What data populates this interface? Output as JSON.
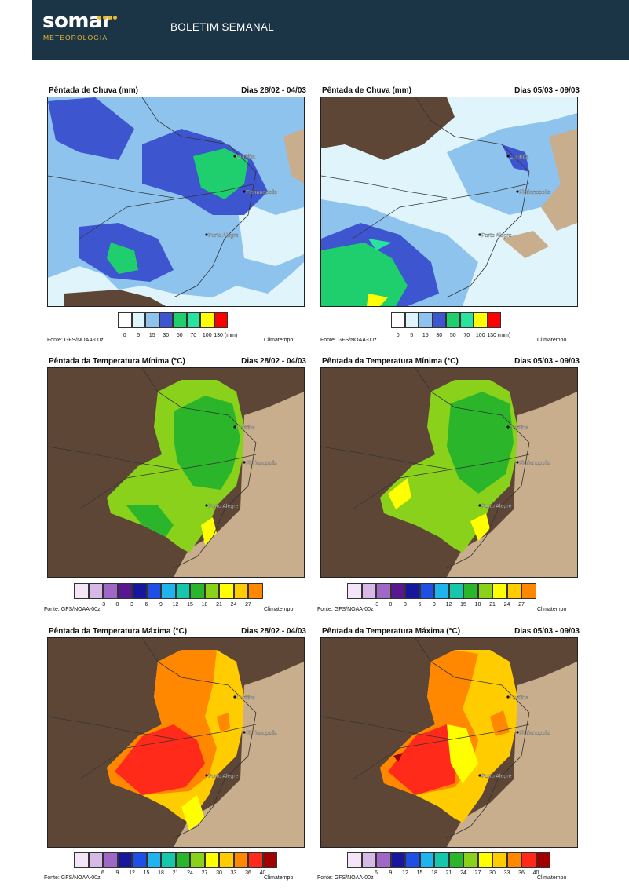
{
  "header": {
    "logo_word": "somar",
    "logo_sub": "METEOROLOGIA",
    "title": "BOLETIM SEMANAL"
  },
  "cities": [
    "Curitiba",
    "Florianopolis",
    "Porto Alegre"
  ],
  "panels": {
    "rain1": {
      "title": "Pêntada de Chuva (mm)",
      "dates": "Dias 28/02 - 04/03",
      "fonte": "Fonte: GFS/NOAA-00z",
      "credit": "Climatempo"
    },
    "rain2": {
      "title": "Pêntada de Chuva (mm)",
      "dates": "Dias 05/03 - 09/03",
      "fonte": "Fonte: GFS/NOAA-00z",
      "credit": "Climatempo"
    },
    "tmin1": {
      "title": "Pêntada da Temperatura Mínima (°C)",
      "dates": "Dias 28/02 - 04/03",
      "fonte": "Fonte: GFS/NOAA-00z",
      "credit": "Climatempo"
    },
    "tmin2": {
      "title": "Pêntada da Temperatura Mínima (°C)",
      "dates": "Dias 05/03 - 09/03",
      "fonte": "Fonte: GFS/NOAA-00z",
      "credit": "Climatempo"
    },
    "tmax1": {
      "title": "Pêntada da Temperatura Máxima (°C)",
      "dates": "Dias 28/02 - 04/03",
      "fonte": "Fonte: GFS/NOAA-00z",
      "credit": "Climatempo"
    },
    "tmax2": {
      "title": "Pêntada da Temperatura Máxima (°C)",
      "dates": "Dias 05/03 - 09/03",
      "fonte": "Fonte: GFS/NOAA-00z",
      "credit": "Climatempo"
    }
  },
  "legends": {
    "rain": {
      "colors": [
        "#ffffff",
        "#dff4fb",
        "#8ec3ee",
        "#3d55cf",
        "#1fcf6e",
        "#29e39e",
        "#ffff00",
        "#ff0000"
      ],
      "labels": [
        "0",
        "5",
        "15",
        "30",
        "50",
        "70",
        "100",
        "130 (mm)"
      ]
    },
    "tmin": {
      "colors": [
        "#f4e6f8",
        "#d7b9e8",
        "#9f68c6",
        "#5a1790",
        "#17179e",
        "#1e4fe6",
        "#1fb4ee",
        "#17c7ac",
        "#2ab52a",
        "#8ad11c",
        "#ffff00",
        "#ffcc00",
        "#ff8800"
      ],
      "labels": [
        "-3",
        "0",
        "3",
        "6",
        "9",
        "12",
        "15",
        "18",
        "21",
        "24",
        "27"
      ]
    },
    "tmax": {
      "colors": [
        "#f4e6f8",
        "#d7b9e8",
        "#9f68c6",
        "#17179e",
        "#1e4fe6",
        "#1fb4ee",
        "#17c7ac",
        "#2ab52a",
        "#8ad11c",
        "#ffff00",
        "#ffcc00",
        "#ff8800",
        "#ff2a1a",
        "#a00000"
      ],
      "labels": [
        "6",
        "9",
        "12",
        "15",
        "18",
        "21",
        "24",
        "27",
        "30",
        "33",
        "36",
        "40"
      ]
    }
  },
  "colors": {
    "header_bg": "#1c3546",
    "brand_gold": "#e8b92d",
    "land_dark": "#5e4636",
    "ocean_tan": "#c8ae8c"
  }
}
